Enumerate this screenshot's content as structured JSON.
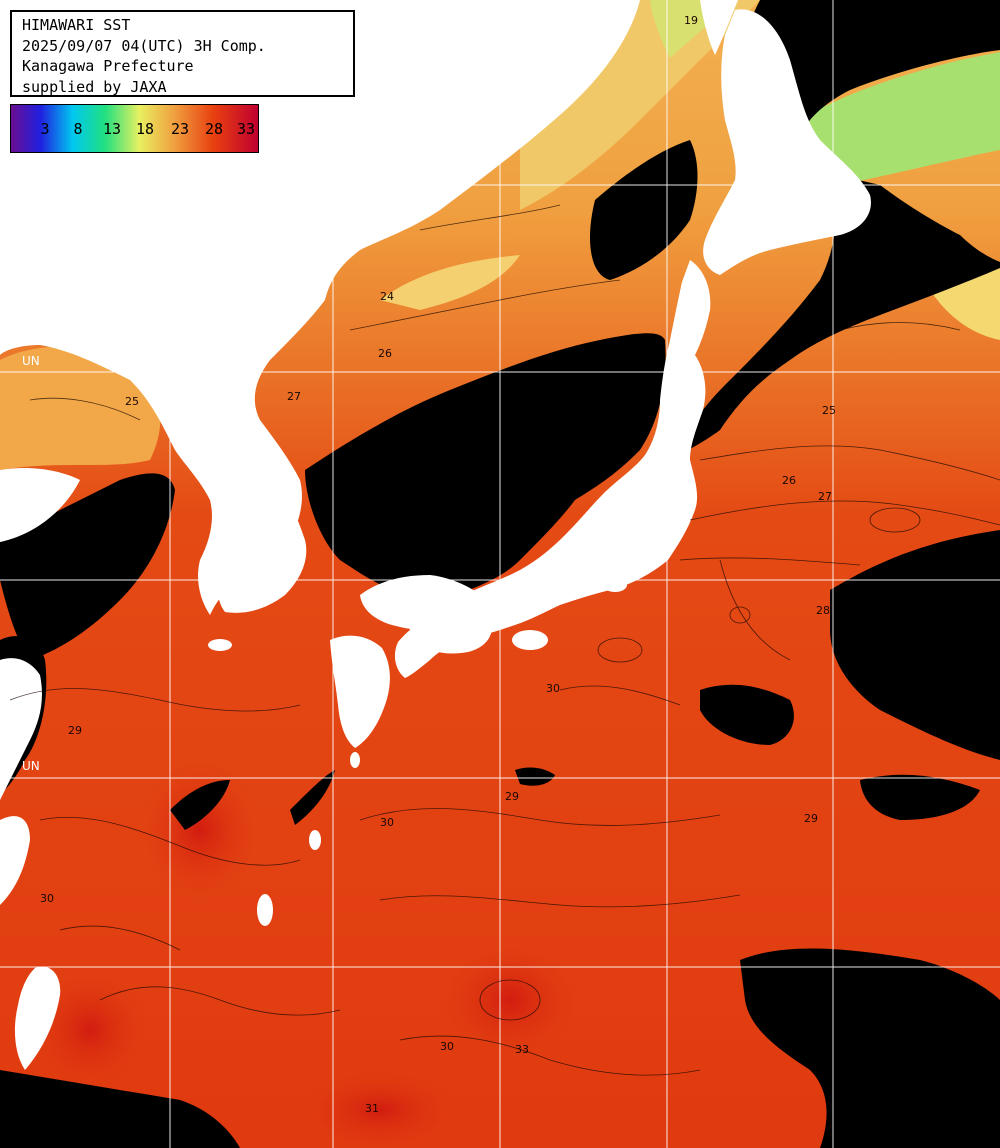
{
  "map": {
    "title": "HIMAWARI SST",
    "timestamp": "2025/09/07 04(UTC) 3H Comp.",
    "region": "Kanagawa Prefecture",
    "credit": "supplied by JAXA",
    "overlay_labels": [
      "UN",
      "UN"
    ]
  },
  "legend": {
    "ticks": [
      "3",
      "8",
      "13",
      "18",
      "23",
      "28",
      "33"
    ]
  },
  "contour_labels": [
    "19",
    "24",
    "25",
    "26",
    "27",
    "28",
    "29",
    "30",
    "31",
    "33"
  ],
  "colors": {
    "land": "#ffffff",
    "cloud_mask": "#000000",
    "graticule": "#ffffff",
    "sst_19": "#b8e860",
    "sst_24": "#f0c060",
    "sst_26": "#f0a040",
    "sst_28": "#e86020",
    "sst_30": "#e03a10",
    "sst_31": "#d82010"
  }
}
